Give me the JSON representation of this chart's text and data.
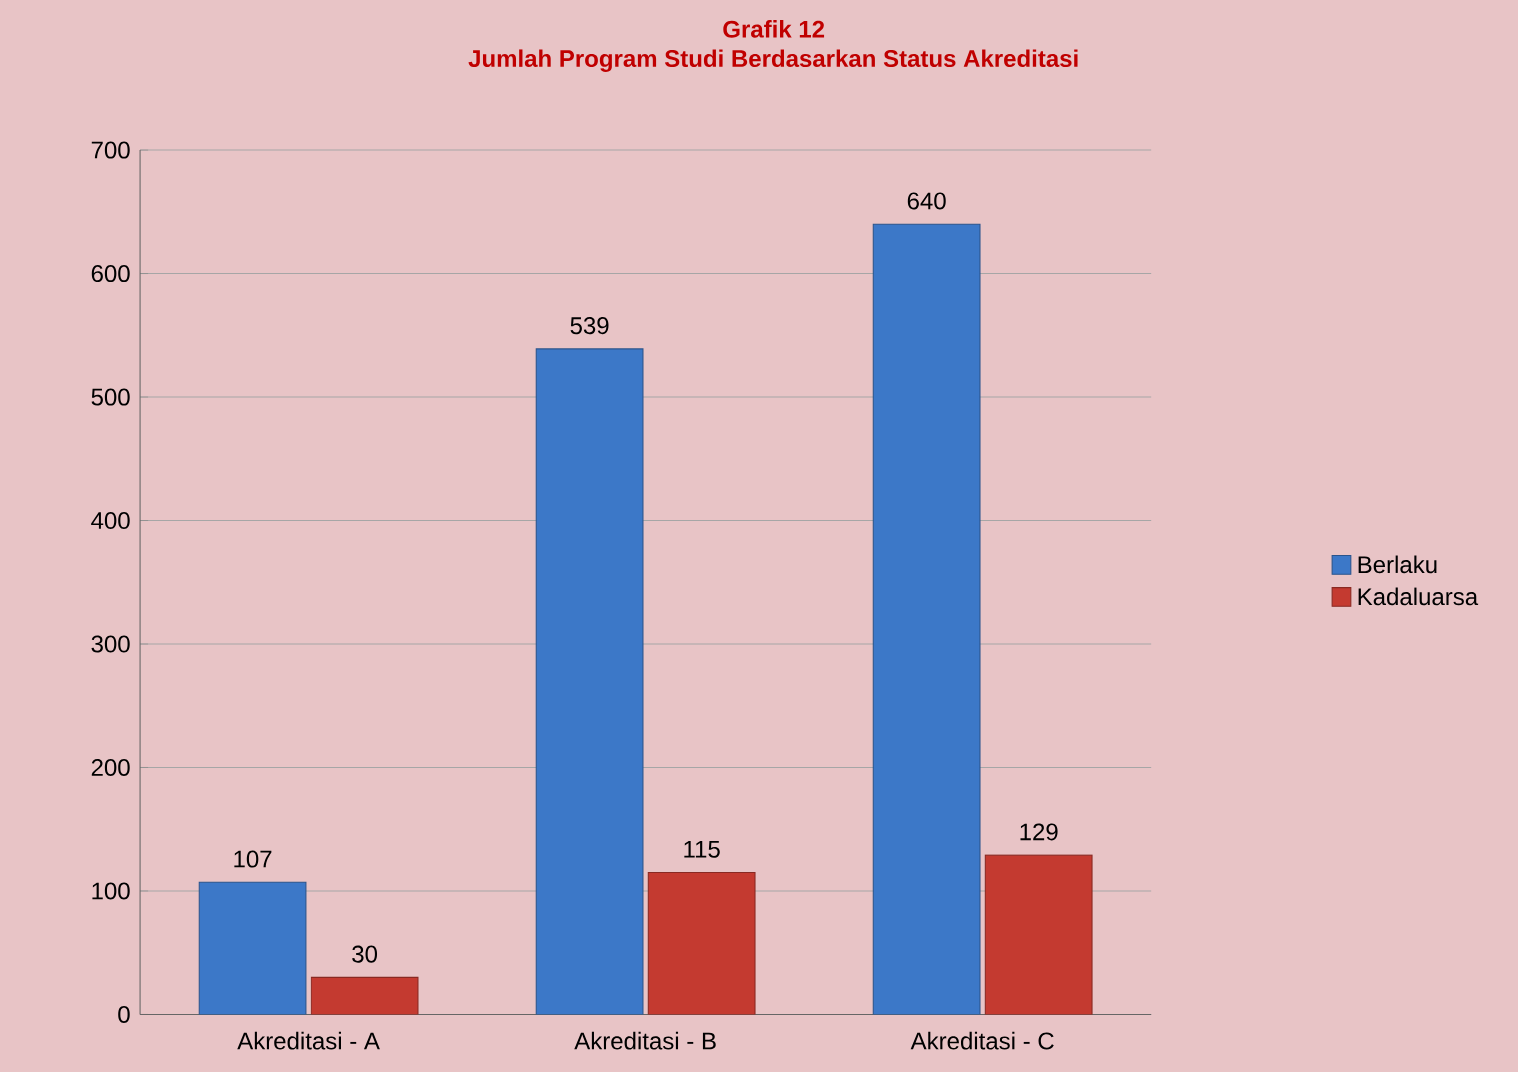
{
  "chart_data": {
    "type": "bar",
    "title": "Grafik 12",
    "subtitle": "Jumlah Program Studi Berdasarkan  Status Akreditasi",
    "categories": [
      "Akreditasi - A",
      "Akreditasi - B",
      "Akreditasi - C"
    ],
    "series": [
      {
        "name": "Berlaku",
        "color": "#3c78c8",
        "values": [
          107,
          539,
          640
        ]
      },
      {
        "name": "Kadaluarsa",
        "color": "#c43a30",
        "values": [
          30,
          115,
          129
        ]
      }
    ],
    "ylim": [
      0,
      700
    ],
    "yticks": [
      0,
      100,
      200,
      300,
      400,
      500,
      600,
      700
    ],
    "grid": "y",
    "legend": "right",
    "data_labels": true
  }
}
